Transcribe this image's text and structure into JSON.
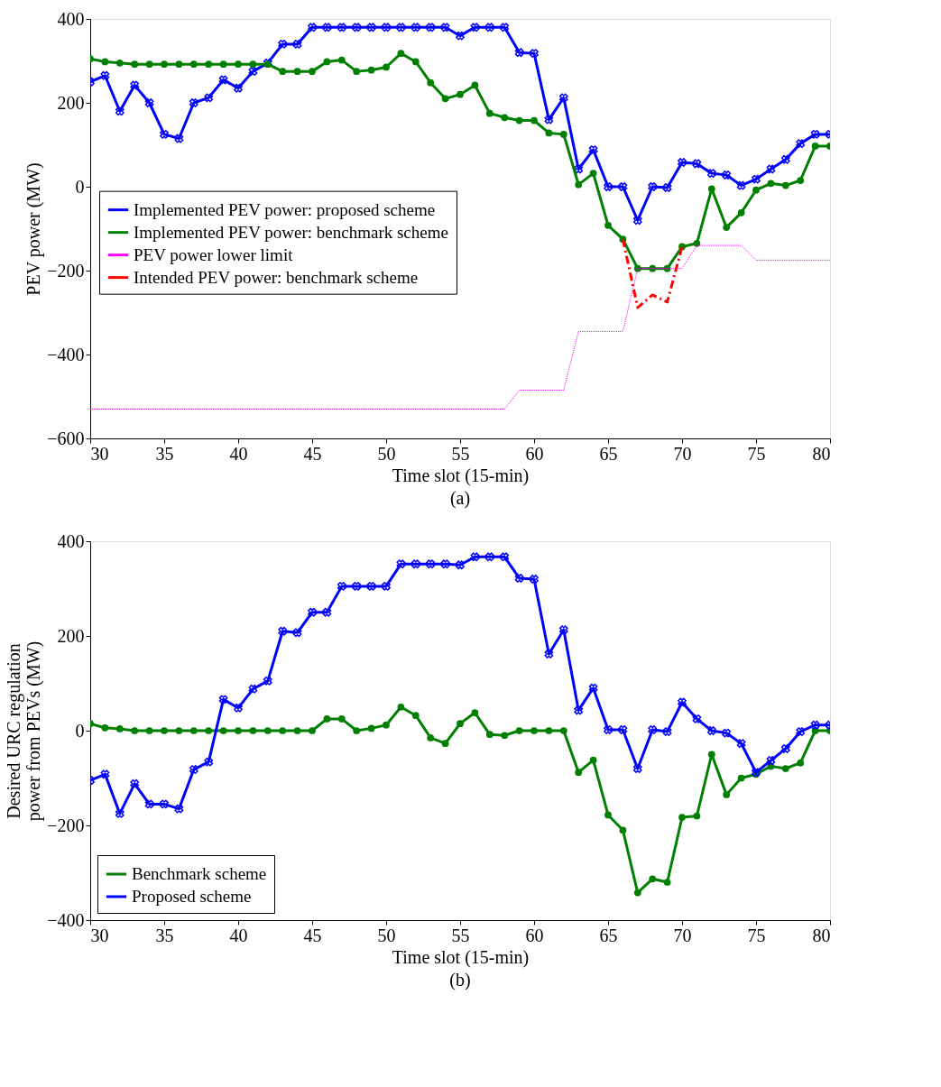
{
  "chart_data": [
    {
      "type": "line",
      "title": "(a)",
      "xlabel": "Time slot (15-min)",
      "ylabel": "PEV power (MW)",
      "legend": "left",
      "grid": false,
      "x": [
        30,
        31,
        32,
        33,
        34,
        35,
        36,
        37,
        38,
        39,
        40,
        41,
        42,
        43,
        44,
        45,
        46,
        47,
        48,
        49,
        50,
        51,
        52,
        53,
        54,
        55,
        56,
        57,
        58,
        59,
        60,
        61,
        62,
        63,
        64,
        65,
        66,
        67,
        68,
        69,
        70,
        71,
        72,
        73,
        74,
        75,
        76,
        77,
        78,
        79,
        80
      ],
      "xlim": [
        30,
        80
      ],
      "xticks": [
        30,
        35,
        40,
        45,
        50,
        55,
        60,
        65,
        70,
        75,
        80
      ],
      "ylim": [
        -600,
        400
      ],
      "yticks": [
        -600,
        -400,
        -200,
        0,
        200,
        400
      ],
      "series": [
        {
          "name": "Implemented PEV power: proposed scheme",
          "color": "#0000ff",
          "marker": "cross",
          "line_style": "solid",
          "values": [
            250,
            265,
            180,
            242,
            200,
            125,
            115,
            200,
            212,
            255,
            235,
            275,
            295,
            340,
            340,
            380,
            380,
            380,
            380,
            380,
            380,
            380,
            380,
            380,
            380,
            360,
            380,
            380,
            380,
            320,
            318,
            160,
            212,
            42,
            88,
            0,
            0,
            -80,
            0,
            -2,
            58,
            55,
            32,
            28,
            3,
            18,
            42,
            65,
            103,
            125,
            125
          ]
        },
        {
          "name": "Implemented PEV power: benchmark scheme",
          "color": "#008000",
          "marker": "circle",
          "line_style": "solid",
          "values": [
            305,
            298,
            295,
            292,
            292,
            292,
            292,
            292,
            292,
            292,
            292,
            292,
            292,
            275,
            275,
            275,
            298,
            302,
            275,
            278,
            285,
            318,
            298,
            248,
            210,
            220,
            242,
            175,
            165,
            158,
            158,
            128,
            125,
            5,
            32,
            -92,
            -125,
            -195,
            -195,
            -195,
            -143,
            -135,
            -5,
            -97,
            -62,
            -8,
            8,
            3,
            15,
            97,
            97
          ]
        },
        {
          "name": "PEV power lower limit",
          "color": "#ff00ff",
          "marker": "none",
          "line_style": "dotted",
          "x": [
            30,
            58,
            59,
            62,
            63,
            66,
            67,
            70,
            71,
            74,
            75,
            80
          ],
          "values": [
            -530,
            -530,
            -485,
            -485,
            -345,
            -345,
            -195,
            -195,
            -140,
            -140,
            -175,
            -175
          ]
        },
        {
          "name": "Intended PEV power: benchmark scheme",
          "color": "#ff0000",
          "marker": "none",
          "line_style": "dashed",
          "x": [
            66,
            67,
            68,
            69,
            70
          ],
          "values": [
            -125,
            -288,
            -258,
            -275,
            -143
          ]
        }
      ]
    },
    {
      "type": "line",
      "title": "(b)",
      "xlabel": "Time slot (15-min)",
      "ylabel": "Desired URC regulation\npower from PEVs (MW)",
      "legend": "bottom left",
      "grid": false,
      "x": [
        30,
        31,
        32,
        33,
        34,
        35,
        36,
        37,
        38,
        39,
        40,
        41,
        42,
        43,
        44,
        45,
        46,
        47,
        48,
        49,
        50,
        51,
        52,
        53,
        54,
        55,
        56,
        57,
        58,
        59,
        60,
        61,
        62,
        63,
        64,
        65,
        66,
        67,
        68,
        69,
        70,
        71,
        72,
        73,
        74,
        75,
        76,
        77,
        78,
        79,
        80
      ],
      "xlim": [
        30,
        80
      ],
      "xticks": [
        30,
        35,
        40,
        45,
        50,
        55,
        60,
        65,
        70,
        75,
        80
      ],
      "ylim": [
        -400,
        400
      ],
      "yticks": [
        -400,
        -200,
        0,
        200,
        400
      ],
      "series": [
        {
          "name": "Benchmark scheme",
          "color": "#008000",
          "marker": "circle",
          "line_style": "solid",
          "values": [
            15,
            6,
            4,
            0,
            0,
            0,
            0,
            0,
            0,
            0,
            0,
            0,
            0,
            0,
            0,
            0,
            25,
            25,
            0,
            5,
            12,
            50,
            32,
            -15,
            -27,
            15,
            38,
            -8,
            -10,
            0,
            0,
            0,
            0,
            -88,
            -62,
            -178,
            -210,
            -342,
            -313,
            -320,
            -183,
            -180,
            -50,
            -135,
            -100,
            -92,
            -75,
            -80,
            -68,
            0,
            0
          ]
        },
        {
          "name": "Proposed scheme",
          "color": "#0000ff",
          "marker": "cross",
          "line_style": "solid",
          "values": [
            -105,
            -92,
            -175,
            -112,
            -155,
            -155,
            -165,
            -82,
            -66,
            66,
            48,
            88,
            105,
            210,
            207,
            250,
            250,
            305,
            305,
            305,
            305,
            352,
            352,
            352,
            352,
            350,
            367,
            367,
            367,
            322,
            320,
            162,
            213,
            43,
            90,
            2,
            2,
            -80,
            2,
            -2,
            60,
            25,
            0,
            -5,
            -27,
            -88,
            -63,
            -38,
            -2,
            12,
            12
          ]
        }
      ]
    }
  ]
}
